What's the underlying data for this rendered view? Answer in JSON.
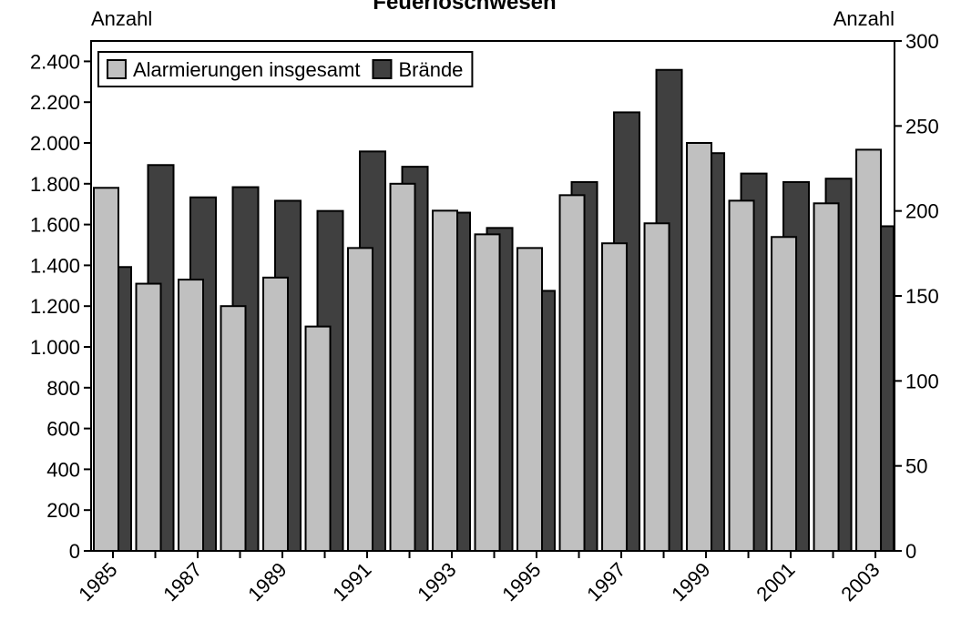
{
  "chart_data": {
    "type": "bar",
    "title": "Feuerlöschwesen",
    "y_label": "Anzahl",
    "y2_label": "Anzahl",
    "categories": [
      "1985",
      null,
      "1987",
      null,
      "1989",
      null,
      "1991",
      null,
      "1993",
      null,
      "1995",
      null,
      "1997",
      null,
      "1999",
      null,
      "2001",
      null,
      "2003"
    ],
    "series": [
      {
        "name": "Alarmierungen insgesamt",
        "color": "#c0c0c0",
        "values": [
          1780,
          1310,
          1330,
          1200,
          1340,
          1100,
          1485,
          1800,
          1668,
          1552,
          1485,
          1744,
          1508,
          1606,
          2000,
          1717,
          1539,
          1704,
          1967
        ]
      },
      {
        "name": "Brände",
        "color": "#404040",
        "axis": "y2",
        "values": [
          167,
          227,
          208,
          214,
          206,
          200,
          235,
          226,
          199,
          190,
          153,
          217,
          258,
          283,
          234,
          222,
          217,
          219,
          191
        ]
      }
    ],
    "ylim": [
      0,
      2500
    ],
    "yticks": [
      0,
      200,
      400,
      600,
      800,
      {
        "value": 1000,
        "label": "1.000"
      },
      {
        "value": 1200,
        "label": "1.200"
      },
      {
        "value": 1400,
        "label": "1.400"
      },
      {
        "value": 1600,
        "label": "1.600"
      },
      {
        "value": 1800,
        "label": "1.800"
      },
      {
        "value": 2000,
        "label": "2.000"
      },
      {
        "value": 2200,
        "label": "2.200"
      },
      {
        "value": 2400,
        "label": "2.400"
      }
    ],
    "y2lim": [
      0,
      300
    ],
    "y2ticks": [
      0,
      50,
      100,
      150,
      200,
      250,
      300
    ],
    "legend": "top-left"
  }
}
